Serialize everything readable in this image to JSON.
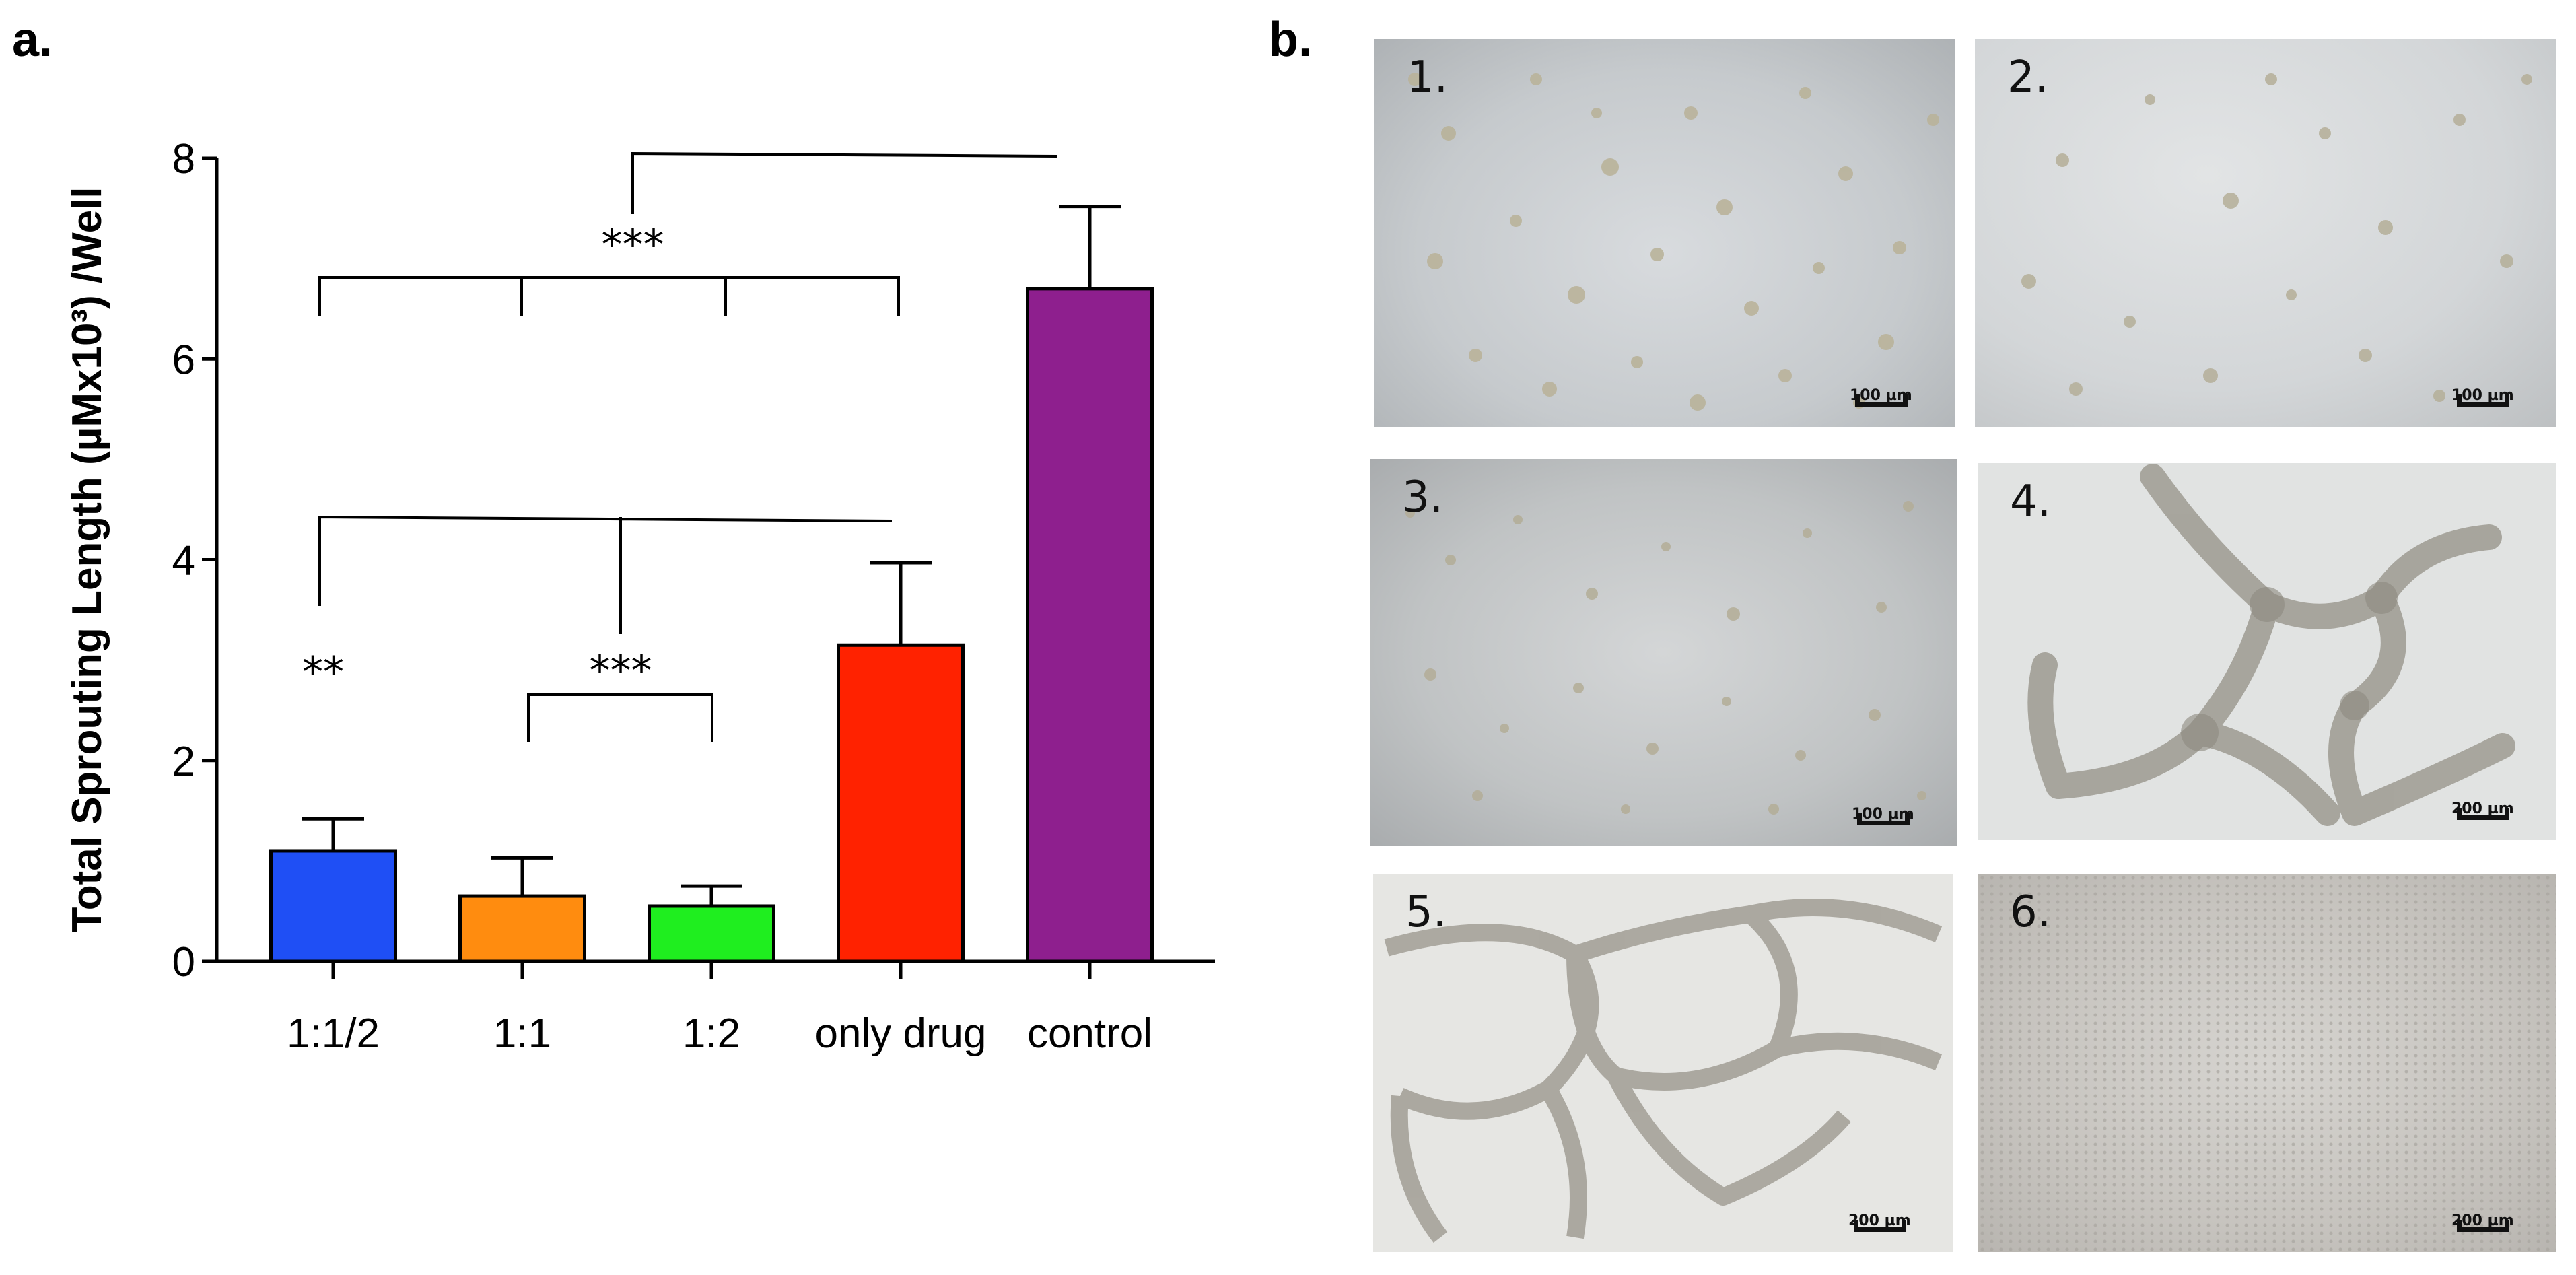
{
  "panels": {
    "a": "a.",
    "b": "b."
  },
  "chart_data": {
    "type": "bar",
    "categories": [
      "1:1/2",
      "1:1",
      "1:2",
      "only drug",
      "control"
    ],
    "values": [
      1.1,
      0.65,
      0.55,
      3.15,
      6.7
    ],
    "errors": [
      0.32,
      0.38,
      0.2,
      0.82,
      0.82
    ],
    "colors": [
      "#1f4ff5",
      "#ff8c0f",
      "#1fee1f",
      "#ff2200",
      "#8e1f8e"
    ],
    "ylabel": "Total Sprouting Length (µMx10³) /Well",
    "ylim": [
      0,
      8
    ],
    "yticks": [
      0,
      2,
      4,
      6,
      8
    ],
    "significance": [
      {
        "label": "***",
        "between": [
          "1:1/2",
          "1:1",
          "1:2",
          "only drug",
          "control"
        ]
      },
      {
        "label": "***",
        "between": [
          "1:1",
          "1:2"
        ]
      },
      {
        "label": "**",
        "between": [
          "1:1/2",
          "1:1",
          "only drug"
        ]
      }
    ]
  },
  "micrographs": [
    {
      "number": "1.",
      "scale": "100 µm"
    },
    {
      "number": "2.",
      "scale": "100 µm"
    },
    {
      "number": "3.",
      "scale": "100 µm"
    },
    {
      "number": "4.",
      "scale": "200 µm"
    },
    {
      "number": "5.",
      "scale": "200 µm"
    },
    {
      "number": "6.",
      "scale": "200 µm"
    }
  ]
}
